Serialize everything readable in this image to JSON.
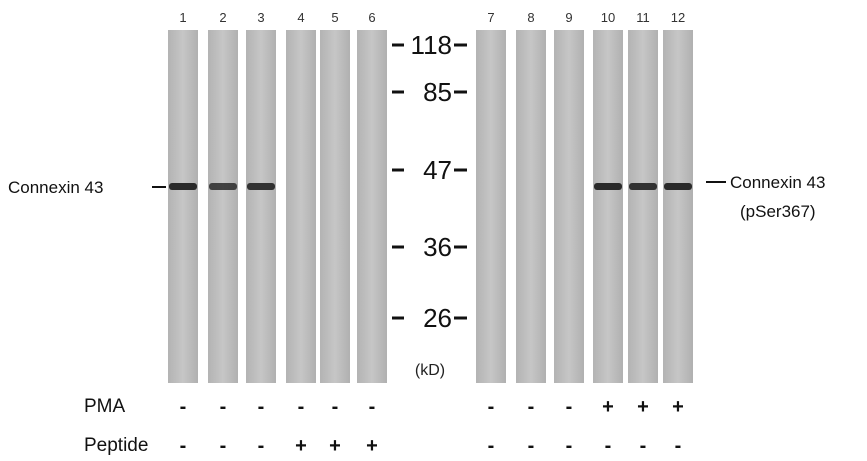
{
  "lanes": [
    {
      "number": "1",
      "pma": "-",
      "peptide": "-",
      "band": 1.0
    },
    {
      "number": "2",
      "pma": "-",
      "peptide": "-",
      "band": 0.85
    },
    {
      "number": "3",
      "pma": "-",
      "peptide": "-",
      "band": 0.95
    },
    {
      "number": "4",
      "pma": "-",
      "peptide": "+",
      "band": 0.0
    },
    {
      "number": "5",
      "pma": "-",
      "peptide": "+",
      "band": 0.0
    },
    {
      "number": "6",
      "pma": "-",
      "peptide": "+",
      "band": 0.0
    },
    {
      "number": "7",
      "pma": "-",
      "peptide": "-",
      "band": 0.0
    },
    {
      "number": "8",
      "pma": "-",
      "peptide": "-",
      "band": 0.0
    },
    {
      "number": "9",
      "pma": "-",
      "peptide": "-",
      "band": 0.0
    },
    {
      "number": "10",
      "pma": "+",
      "peptide": "-",
      "band": 1.0
    },
    {
      "number": "11",
      "pma": "+",
      "peptide": "-",
      "band": 0.95
    },
    {
      "number": "12",
      "pma": "+",
      "peptide": "-",
      "band": 1.0
    }
  ],
  "markers": [
    "118",
    "85",
    "47",
    "36",
    "26"
  ],
  "unit": "(kD)",
  "left_label": "Connexin 43",
  "right_label_line1": "Connexin 43",
  "right_label_line2": "(pSer367)",
  "row_labels": {
    "pma": "PMA",
    "peptide": "Peptide"
  },
  "colors": {
    "lane": "#bdbdbd",
    "band": "#2a2a2a",
    "text": "#111111"
  }
}
